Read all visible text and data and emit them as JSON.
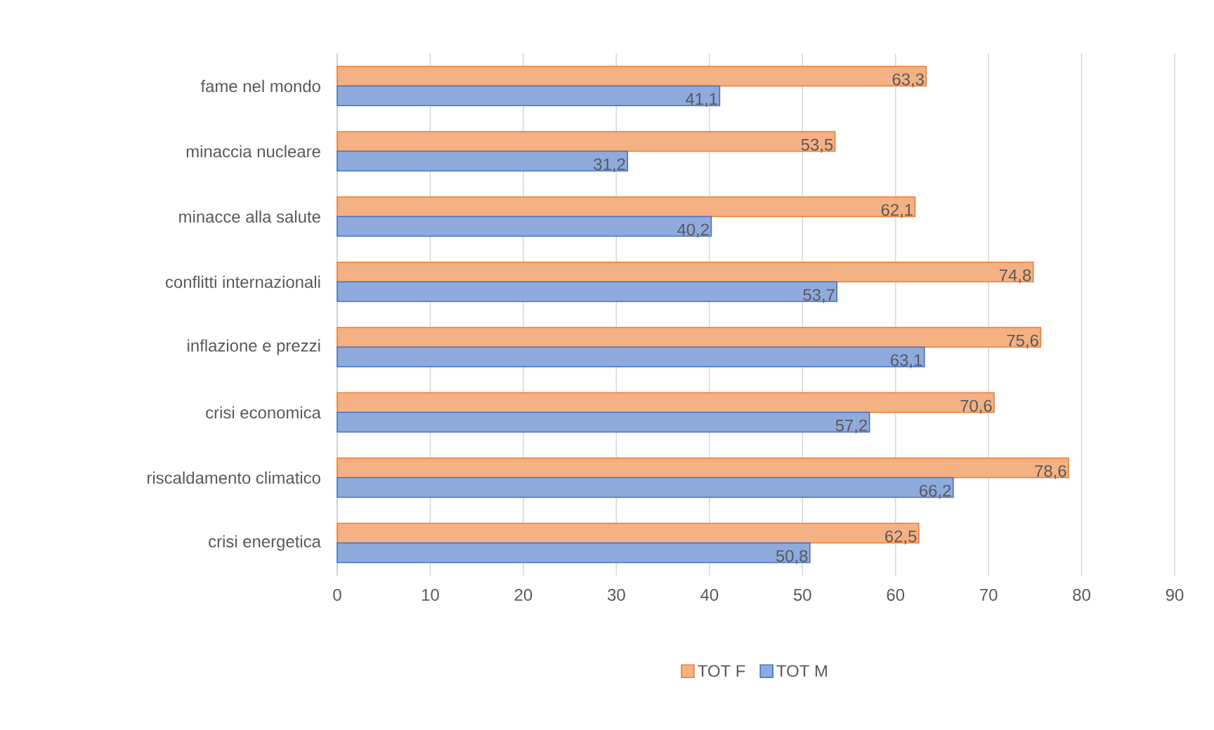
{
  "chart_data": {
    "type": "bar",
    "orientation": "horizontal",
    "categories": [
      "fame nel mondo",
      "minaccia nucleare",
      "minacce alla salute",
      "conflitti internazionali",
      "inflazione e prezzi",
      "crisi economica",
      "riscaldamento climatico",
      "crisi energetica"
    ],
    "series": [
      {
        "name": "TOT F",
        "color": "#f4b183",
        "values": [
          63.3,
          53.5,
          62.1,
          74.8,
          75.6,
          70.6,
          78.6,
          62.5
        ],
        "value_labels": [
          "63,3",
          "53,5",
          "62,1",
          "74,8",
          "75,6",
          "70,6",
          "78,6",
          "62,5"
        ]
      },
      {
        "name": "TOT M",
        "color": "#8faadc",
        "values": [
          41.1,
          31.2,
          40.2,
          53.7,
          63.1,
          57.2,
          66.2,
          50.8
        ],
        "value_labels": [
          "41,1",
          "31,2",
          "40,2",
          "53,7",
          "63,1",
          "57,2",
          "66,2",
          "50,8"
        ]
      }
    ],
    "xlim": [
      0,
      90
    ],
    "xticks": [
      0,
      10,
      20,
      30,
      40,
      50,
      60,
      70,
      80,
      90
    ],
    "grid": "x",
    "legend": "bottom"
  }
}
